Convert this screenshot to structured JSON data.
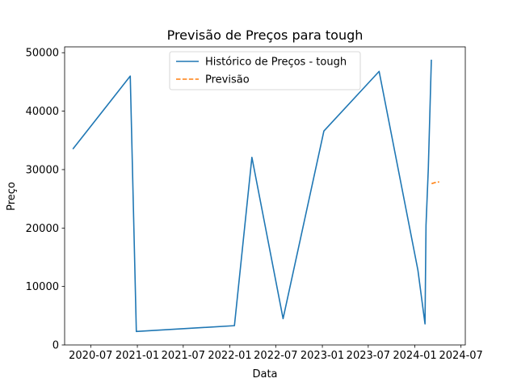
{
  "chart_data": {
    "type": "line",
    "title": "Previsão de Preços para tough",
    "xlabel": "Data",
    "ylabel": "Preço",
    "x_ticks": [
      "2020-07",
      "2021-01",
      "2021-07",
      "2022-01",
      "2022-07",
      "2023-01",
      "2023-07",
      "2024-01",
      "2024-07"
    ],
    "y_ticks": [
      "0",
      "10000",
      "20000",
      "30000",
      "40000",
      "50000"
    ],
    "xlim": [
      "2020-03-20",
      "2024-07-18"
    ],
    "ylim": [
      0,
      51000
    ],
    "grid": false,
    "legend_position": "top-center",
    "series": [
      {
        "name": "Histórico de Preços - tough",
        "color": "#1f77b4",
        "style": "solid",
        "points": [
          {
            "x": "2020-04-23",
            "y": 33600
          },
          {
            "x": "2020-12-04",
            "y": 46000
          },
          {
            "x": "2020-12-28",
            "y": 2300
          },
          {
            "x": "2022-01-19",
            "y": 3300
          },
          {
            "x": "2022-03-29",
            "y": 32100
          },
          {
            "x": "2022-07-30",
            "y": 4500
          },
          {
            "x": "2023-01-07",
            "y": 36600
          },
          {
            "x": "2023-08-13",
            "y": 46800
          },
          {
            "x": "2024-01-13",
            "y": 12800
          },
          {
            "x": "2024-02-10",
            "y": 3600
          },
          {
            "x": "2024-02-14",
            "y": 20500
          },
          {
            "x": "2024-02-23",
            "y": 30100
          },
          {
            "x": "2024-03-06",
            "y": 48700
          }
        ]
      },
      {
        "name": "Previsão",
        "color": "#ff7f0e",
        "style": "dashed",
        "points": [
          {
            "x": "2024-03-07",
            "y": 27600
          },
          {
            "x": "2024-03-18",
            "y": 27750
          },
          {
            "x": "2024-04-06",
            "y": 27900
          }
        ]
      }
    ]
  }
}
